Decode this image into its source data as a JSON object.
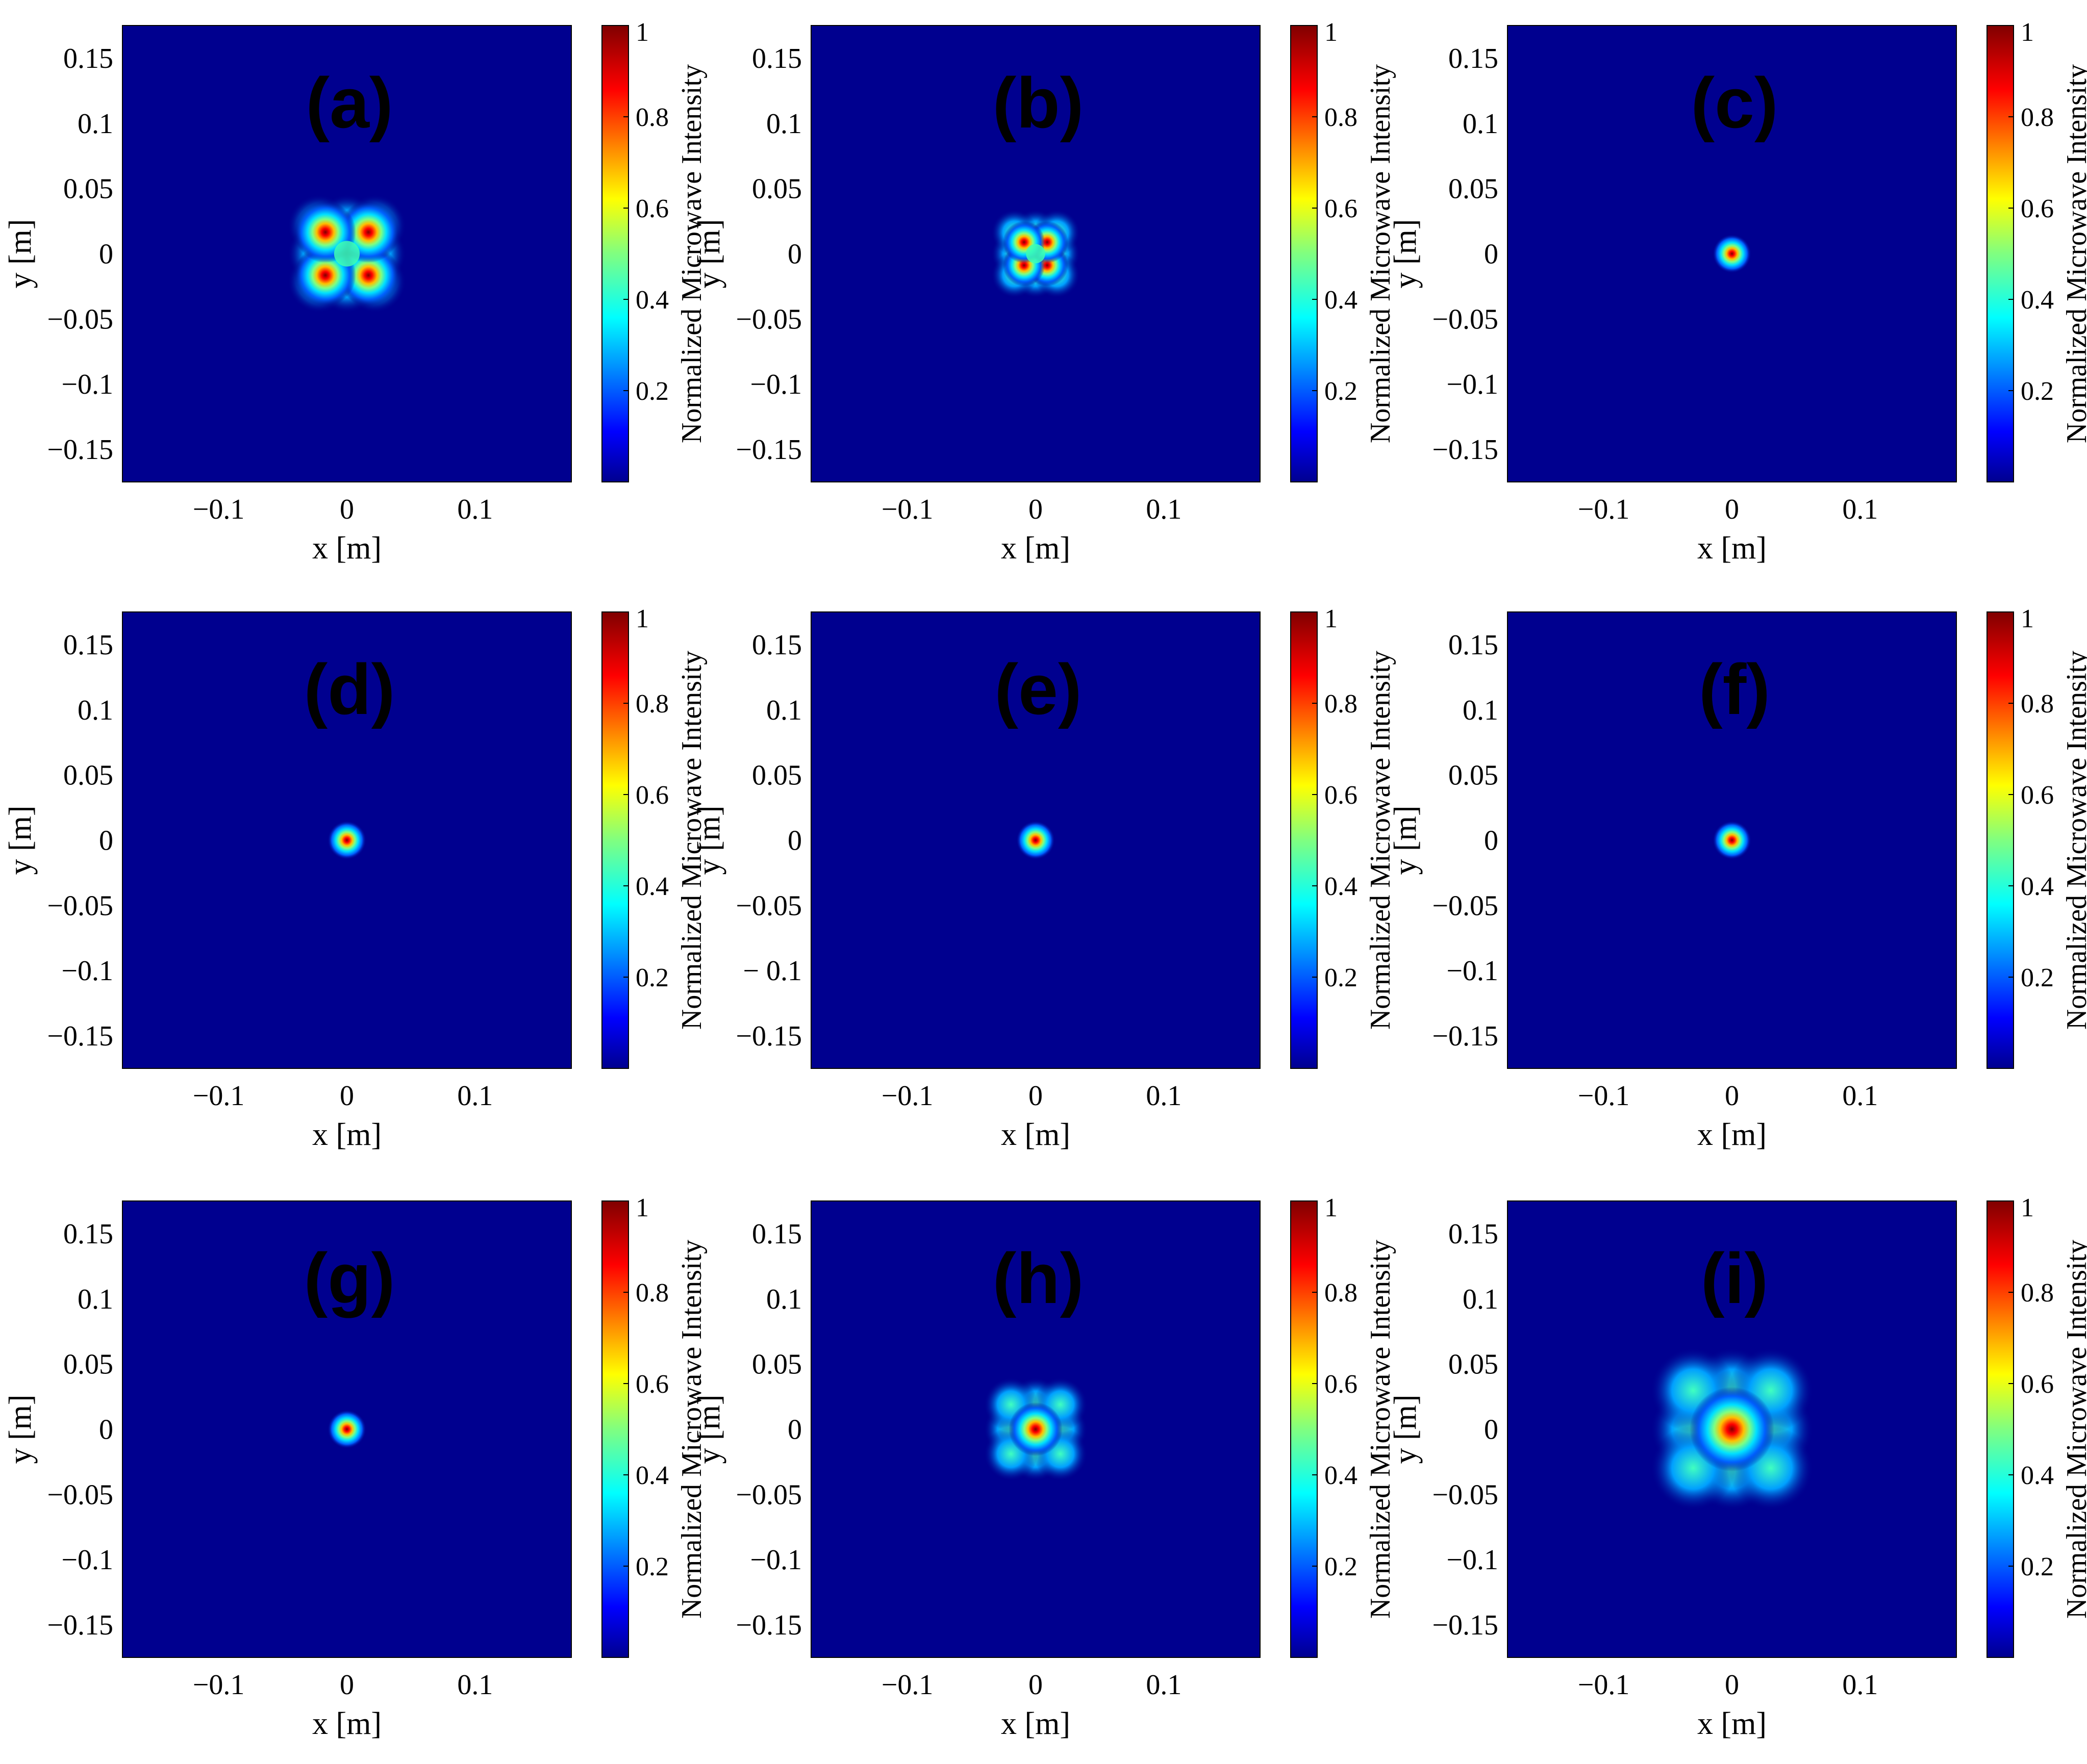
{
  "colors": {
    "background": "#00008F",
    "panel_label": "#E8141B",
    "colormap": [
      "#00008F",
      "#0000FF",
      "#0080FF",
      "#00FFFF",
      "#80FF80",
      "#FFFF00",
      "#FF8000",
      "#FF0000",
      "#800000"
    ]
  },
  "chart_data": [
    {
      "type": "heatmap",
      "panel": "(a)",
      "xlabel": "x [m]",
      "ylabel": "y [m]",
      "xlim": [
        -0.175,
        0.175
      ],
      "ylim": [
        -0.175,
        0.175
      ],
      "xticks": [
        {
          "v": -0.1,
          "t": "−0.1"
        },
        {
          "v": 0,
          "t": "0"
        },
        {
          "v": 0.1,
          "t": "0.1"
        }
      ],
      "yticks": [
        {
          "v": 0.15,
          "t": "0.15"
        },
        {
          "v": 0.1,
          "t": "0.1"
        },
        {
          "v": 0.05,
          "t": "0.05"
        },
        {
          "v": 0,
          "t": "0"
        },
        {
          "v": -0.05,
          "t": "−0.05"
        },
        {
          "v": -0.1,
          "t": "−0.1"
        },
        {
          "v": -0.15,
          "t": "−0.15"
        }
      ],
      "colorbar": {
        "label": "Normalized Microwave Intensity",
        "range": [
          0,
          1
        ],
        "ticks": [
          {
            "v": 0.2,
            "t": "0.2"
          },
          {
            "v": 0.4,
            "t": "0.4"
          },
          {
            "v": 0.6,
            "t": "0.6"
          },
          {
            "v": 0.8,
            "t": "0.8"
          },
          {
            "v": 1,
            "t": "1"
          }
        ]
      },
      "intensity_pattern": "four-lobed square ring, peaks near (±0.015, ±0.015) m, extent ≈ ±0.04 m",
      "spot_radius": 0.04
    },
    {
      "type": "heatmap",
      "panel": "(b)",
      "xlabel": "x [m]",
      "ylabel": "y [m]",
      "xlim": [
        -0.175,
        0.175
      ],
      "ylim": [
        -0.175,
        0.175
      ],
      "xticks": [
        {
          "v": -0.1,
          "t": "−0.1"
        },
        {
          "v": 0,
          "t": "0"
        },
        {
          "v": 0.1,
          "t": "0.1"
        }
      ],
      "yticks": [
        {
          "v": 0.15,
          "t": "0.15"
        },
        {
          "v": 0.1,
          "t": "0.1"
        },
        {
          "v": 0.05,
          "t": "0.05"
        },
        {
          "v": 0,
          "t": "0"
        },
        {
          "v": -0.05,
          "t": "−0.05"
        },
        {
          "v": -0.1,
          "t": "−0.1"
        },
        {
          "v": -0.15,
          "t": "−0.15"
        }
      ],
      "colorbar": {
        "label": "Normalized Microwave Intensity",
        "range": [
          0,
          1
        ],
        "ticks": [
          {
            "v": 0.2,
            "t": "0.2"
          },
          {
            "v": 0.4,
            "t": "0.4"
          },
          {
            "v": 0.6,
            "t": "0.6"
          },
          {
            "v": 0.8,
            "t": "0.8"
          },
          {
            "v": 1,
            "t": "1"
          }
        ]
      },
      "intensity_pattern": "square ring with bright edge, extent ≈ ±0.03 m",
      "spot_radius": 0.03
    },
    {
      "type": "heatmap",
      "panel": "(c)",
      "xlabel": "x [m]",
      "ylabel": "y [m]",
      "xlim": [
        -0.175,
        0.175
      ],
      "ylim": [
        -0.175,
        0.175
      ],
      "xticks": [
        {
          "v": -0.1,
          "t": "−0.1"
        },
        {
          "v": 0,
          "t": "0"
        },
        {
          "v": 0.1,
          "t": "0.1"
        }
      ],
      "yticks": [
        {
          "v": 0.15,
          "t": "0.15"
        },
        {
          "v": 0.1,
          "t": "0.1"
        },
        {
          "v": 0.05,
          "t": "0.05"
        },
        {
          "v": 0,
          "t": "0"
        },
        {
          "v": -0.05,
          "t": "−0.05"
        },
        {
          "v": -0.1,
          "t": "−0.1"
        },
        {
          "v": -0.15,
          "t": "−0.15"
        }
      ],
      "colorbar": {
        "label": "Normalized Microwave Intensity",
        "range": [
          0,
          1
        ],
        "ticks": [
          {
            "v": 0.2,
            "t": "0.2"
          },
          {
            "v": 0.4,
            "t": "0.4"
          },
          {
            "v": 0.6,
            "t": "0.6"
          },
          {
            "v": 0.8,
            "t": "0.8"
          },
          {
            "v": 1,
            "t": "1"
          }
        ]
      },
      "intensity_pattern": "small focused spot at (0,0) with faint cross side lobes",
      "spot_radius": 0.015
    },
    {
      "type": "heatmap",
      "panel": "(d)",
      "xlabel": "x [m]",
      "ylabel": "y [m]",
      "xlim": [
        -0.175,
        0.175
      ],
      "ylim": [
        -0.175,
        0.175
      ],
      "xticks": [
        {
          "v": -0.1,
          "t": "−0.1"
        },
        {
          "v": 0,
          "t": "0"
        },
        {
          "v": 0.1,
          "t": "0.1"
        }
      ],
      "yticks": [
        {
          "v": 0.15,
          "t": "0.15"
        },
        {
          "v": 0.1,
          "t": "0.1"
        },
        {
          "v": 0.05,
          "t": "0.05"
        },
        {
          "v": 0,
          "t": "0"
        },
        {
          "v": -0.05,
          "t": "−0.05"
        },
        {
          "v": -0.1,
          "t": "−0.1"
        },
        {
          "v": -0.15,
          "t": "−0.15"
        }
      ],
      "colorbar": {
        "label": "Normalized Microwave Intensity",
        "range": [
          0,
          1
        ],
        "ticks": [
          {
            "v": 0.2,
            "t": "0.2"
          },
          {
            "v": 0.4,
            "t": "0.4"
          },
          {
            "v": 0.6,
            "t": "0.6"
          },
          {
            "v": 0.8,
            "t": "0.8"
          },
          {
            "v": 1,
            "t": "1"
          }
        ]
      },
      "intensity_pattern": "tight focused spot at (0,0)",
      "spot_radius": 0.01
    },
    {
      "type": "heatmap",
      "panel": "(e)",
      "xlabel": "x [m]",
      "ylabel": "y [m]",
      "xlim": [
        -0.175,
        0.175
      ],
      "ylim": [
        -0.175,
        0.175
      ],
      "xticks": [
        {
          "v": -0.1,
          "t": "−0.1"
        },
        {
          "v": 0,
          "t": "0"
        },
        {
          "v": 0.1,
          "t": "0.1"
        }
      ],
      "yticks": [
        {
          "v": 0.15,
          "t": "0.15"
        },
        {
          "v": 0.1,
          "t": "0.1"
        },
        {
          "v": 0.05,
          "t": "0.05"
        },
        {
          "v": 0,
          "t": "0"
        },
        {
          "v": -0.05,
          "t": "−0.05"
        },
        {
          "v": -0.1,
          "t": "− 0.1"
        },
        {
          "v": -0.15,
          "t": "−0.15"
        }
      ],
      "colorbar": {
        "label": "Normalized Microwave Intensity",
        "range": [
          0,
          1
        ],
        "ticks": [
          {
            "v": 0.2,
            "t": "0.2"
          },
          {
            "v": 0.4,
            "t": "0.4"
          },
          {
            "v": 0.6,
            "t": "0.6"
          },
          {
            "v": 0.8,
            "t": "0.8"
          },
          {
            "v": 1,
            "t": "1"
          }
        ]
      },
      "intensity_pattern": "tight focused spot at (0,0)",
      "spot_radius": 0.01
    },
    {
      "type": "heatmap",
      "panel": "(f)",
      "xlabel": "x [m]",
      "ylabel": "y [m]",
      "xlim": [
        -0.175,
        0.175
      ],
      "ylim": [
        -0.175,
        0.175
      ],
      "xticks": [
        {
          "v": -0.1,
          "t": "−0.1"
        },
        {
          "v": 0,
          "t": "0"
        },
        {
          "v": 0.1,
          "t": "0.1"
        }
      ],
      "yticks": [
        {
          "v": 0.15,
          "t": "0.15"
        },
        {
          "v": 0.1,
          "t": "0.1"
        },
        {
          "v": 0.05,
          "t": "0.05"
        },
        {
          "v": 0,
          "t": "0"
        },
        {
          "v": -0.05,
          "t": "−0.05"
        },
        {
          "v": -0.1,
          "t": "−0.1"
        },
        {
          "v": -0.15,
          "t": "−0.15"
        }
      ],
      "colorbar": {
        "label": "Normalized Microwave Intensity",
        "range": [
          0,
          1
        ],
        "ticks": [
          {
            "v": 0.2,
            "t": "0.2"
          },
          {
            "v": 0.4,
            "t": "0.4"
          },
          {
            "v": 0.6,
            "t": "0.6"
          },
          {
            "v": 0.8,
            "t": "0.8"
          },
          {
            "v": 1,
            "t": "1"
          }
        ]
      },
      "intensity_pattern": "focused spot at (0,0) with faint side lobes",
      "spot_radius": 0.012
    },
    {
      "type": "heatmap",
      "panel": "(g)",
      "xlabel": "x [m]",
      "ylabel": "y [m]",
      "xlim": [
        -0.175,
        0.175
      ],
      "ylim": [
        -0.175,
        0.175
      ],
      "xticks": [
        {
          "v": -0.1,
          "t": "−0.1"
        },
        {
          "v": 0,
          "t": "0"
        },
        {
          "v": 0.1,
          "t": "0.1"
        }
      ],
      "yticks": [
        {
          "v": 0.15,
          "t": "0.15"
        },
        {
          "v": 0.1,
          "t": "0.1"
        },
        {
          "v": 0.05,
          "t": "0.05"
        },
        {
          "v": 0,
          "t": "0"
        },
        {
          "v": -0.05,
          "t": "−0.05"
        },
        {
          "v": -0.1,
          "t": "−0.1"
        },
        {
          "v": -0.15,
          "t": "−0.15"
        }
      ],
      "colorbar": {
        "label": "Normalized Microwave Intensity",
        "range": [
          0,
          1
        ],
        "ticks": [
          {
            "v": 0.2,
            "t": "0.2"
          },
          {
            "v": 0.4,
            "t": "0.4"
          },
          {
            "v": 0.6,
            "t": "0.6"
          },
          {
            "v": 0.8,
            "t": "0.8"
          },
          {
            "v": 1,
            "t": "1"
          }
        ]
      },
      "intensity_pattern": "focused spot at (0,0) with weak cross side lobes",
      "spot_radius": 0.018
    },
    {
      "type": "heatmap",
      "panel": "(h)",
      "xlabel": "x [m]",
      "ylabel": "y [m]",
      "xlim": [
        -0.175,
        0.175
      ],
      "ylim": [
        -0.175,
        0.175
      ],
      "xticks": [
        {
          "v": -0.1,
          "t": "−0.1"
        },
        {
          "v": 0,
          "t": "0"
        },
        {
          "v": 0.1,
          "t": "0.1"
        }
      ],
      "yticks": [
        {
          "v": 0.15,
          "t": "0.15"
        },
        {
          "v": 0.1,
          "t": "0.1"
        },
        {
          "v": 0.05,
          "t": "0.05"
        },
        {
          "v": 0,
          "t": "0"
        },
        {
          "v": -0.05,
          "t": "−0.05"
        },
        {
          "v": -0.1,
          "t": "−0.1"
        },
        {
          "v": -0.15,
          "t": "−0.15"
        }
      ],
      "colorbar": {
        "label": "Normalized Microwave Intensity",
        "range": [
          0,
          1
        ],
        "ticks": [
          {
            "v": 0.2,
            "t": "0.2"
          },
          {
            "v": 0.4,
            "t": "0.4"
          },
          {
            "v": 0.6,
            "t": "0.6"
          },
          {
            "v": 0.8,
            "t": "0.8"
          },
          {
            "v": 1,
            "t": "1"
          }
        ]
      },
      "intensity_pattern": "central peak at (0,0) with cross-shaped side lobes to ≈ ±0.04 m",
      "spot_radius": 0.035
    },
    {
      "type": "heatmap",
      "panel": "(i)",
      "xlabel": "x [m]",
      "ylabel": "y [m]",
      "xlim": [
        -0.175,
        0.175
      ],
      "ylim": [
        -0.175,
        0.175
      ],
      "xticks": [
        {
          "v": -0.1,
          "t": "−0.1"
        },
        {
          "v": 0,
          "t": "0"
        },
        {
          "v": 0.1,
          "t": "0.1"
        }
      ],
      "yticks": [
        {
          "v": 0.15,
          "t": "0.15"
        },
        {
          "v": 0.1,
          "t": "0.1"
        },
        {
          "v": 0.05,
          "t": "0.05"
        },
        {
          "v": 0,
          "t": "0"
        },
        {
          "v": -0.05,
          "t": "−0.05"
        },
        {
          "v": -0.1,
          "t": "−0.1"
        },
        {
          "v": -0.15,
          "t": "−0.15"
        }
      ],
      "colorbar": {
        "label": "Normalized Microwave Intensity",
        "range": [
          0,
          1
        ],
        "ticks": [
          {
            "v": 0.2,
            "t": "0.2"
          },
          {
            "v": 0.4,
            "t": "0.4"
          },
          {
            "v": 0.6,
            "t": "0.6"
          },
          {
            "v": 0.8,
            "t": "0.8"
          },
          {
            "v": 1,
            "t": "1"
          }
        ]
      },
      "intensity_pattern": "central peak at (0,0) surrounded by broad square of side lobes to ≈ ±0.05 m",
      "spot_radius": 0.055
    }
  ]
}
